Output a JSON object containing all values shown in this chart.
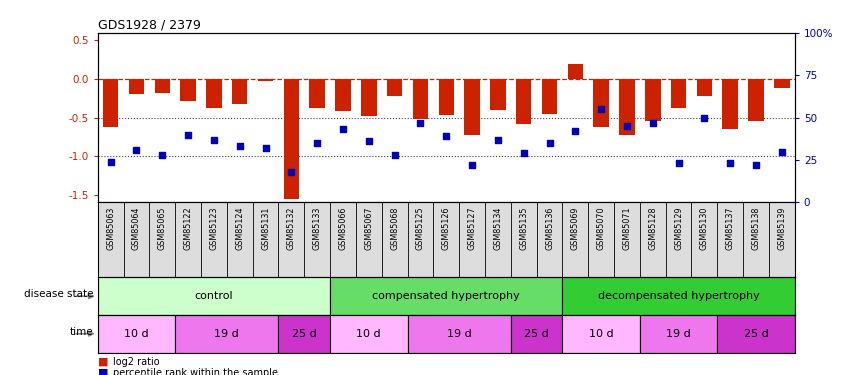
{
  "title": "GDS1928 / 2379",
  "samples": [
    "GSM85063",
    "GSM85064",
    "GSM85065",
    "GSM85122",
    "GSM85123",
    "GSM85124",
    "GSM85131",
    "GSM85132",
    "GSM85133",
    "GSM85066",
    "GSM85067",
    "GSM85068",
    "GSM85125",
    "GSM85126",
    "GSM85127",
    "GSM85134",
    "GSM85135",
    "GSM85136",
    "GSM85069",
    "GSM85070",
    "GSM85071",
    "GSM85128",
    "GSM85129",
    "GSM85130",
    "GSM85137",
    "GSM85138",
    "GSM85139"
  ],
  "log2_ratio": [
    -0.62,
    -0.2,
    -0.18,
    -0.28,
    -0.38,
    -0.32,
    -0.03,
    -1.55,
    -0.38,
    -0.42,
    -0.48,
    -0.22,
    -0.52,
    -0.47,
    -0.72,
    -0.4,
    -0.58,
    -0.45,
    0.2,
    -0.62,
    -0.72,
    -0.55,
    -0.38,
    -0.22,
    -0.65,
    -0.55,
    -0.12
  ],
  "percentile_rank": [
    24,
    31,
    28,
    40,
    37,
    33,
    32,
    18,
    35,
    43,
    36,
    28,
    47,
    39,
    22,
    37,
    29,
    35,
    42,
    55,
    45,
    47,
    23,
    50,
    23,
    22,
    30
  ],
  "disease_state_groups": [
    {
      "label": "control",
      "start": 0,
      "end": 8,
      "color": "#CCFFCC"
    },
    {
      "label": "compensated hypertrophy",
      "start": 9,
      "end": 17,
      "color": "#66DD66"
    },
    {
      "label": "decompensated hypertrophy",
      "start": 18,
      "end": 26,
      "color": "#33CC33"
    }
  ],
  "time_groups": [
    {
      "label": "10 d",
      "start": 0,
      "end": 2,
      "color": "#FFB8FF"
    },
    {
      "label": "19 d",
      "start": 3,
      "end": 6,
      "color": "#EE77EE"
    },
    {
      "label": "25 d",
      "start": 7,
      "end": 8,
      "color": "#CC33CC"
    },
    {
      "label": "10 d",
      "start": 9,
      "end": 11,
      "color": "#FFB8FF"
    },
    {
      "label": "19 d",
      "start": 12,
      "end": 15,
      "color": "#EE77EE"
    },
    {
      "label": "25 d",
      "start": 16,
      "end": 17,
      "color": "#CC33CC"
    },
    {
      "label": "10 d",
      "start": 18,
      "end": 20,
      "color": "#FFB8FF"
    },
    {
      "label": "19 d",
      "start": 21,
      "end": 23,
      "color": "#EE77EE"
    },
    {
      "label": "25 d",
      "start": 24,
      "end": 26,
      "color": "#CC33CC"
    }
  ],
  "bar_color": "#CC2200",
  "dot_color": "#0000BB",
  "ref_line_color": "#CC2200",
  "grid_line_color": "#444444",
  "sample_bg_color": "#DDDDDD",
  "ylim_left": [
    -1.6,
    0.6
  ],
  "ylim_right": [
    0,
    100
  ],
  "yticks_left": [
    -1.5,
    -1.0,
    -0.5,
    0.0,
    0.5
  ],
  "yticks_right": [
    0,
    25,
    50,
    75,
    100
  ],
  "ytick_labels_right": [
    "0",
    "25",
    "50",
    "75",
    "100%"
  ]
}
